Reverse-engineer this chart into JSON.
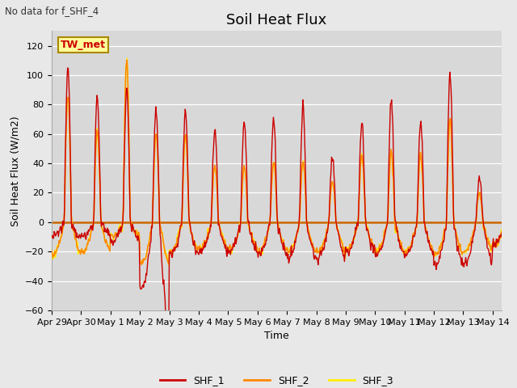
{
  "title": "Soil Heat Flux",
  "xlabel": "Time",
  "ylabel": "Soil Heat Flux (W/m2)",
  "top_left_text": "No data for f_SHF_4",
  "legend_label_text": "TW_met",
  "ylim": [
    -60,
    130
  ],
  "yticks": [
    -60,
    -40,
    -20,
    0,
    20,
    40,
    60,
    80,
    100,
    120
  ],
  "series_colors": {
    "SHF_1": "#cc0000",
    "SHF_2": "#ff8800",
    "SHF_3": "#ffee00"
  },
  "fig_bg_color": "#e8e8e8",
  "plot_bg_color": "#d8d8d8",
  "grid_color": "#ffffff",
  "legend_box_color": "#ffff99",
  "legend_box_edge": "#aa8800",
  "zero_line_color": "#cc6600",
  "title_fontsize": 13,
  "axis_label_fontsize": 9,
  "tick_label_fontsize": 8,
  "legend_fontsize": 9
}
